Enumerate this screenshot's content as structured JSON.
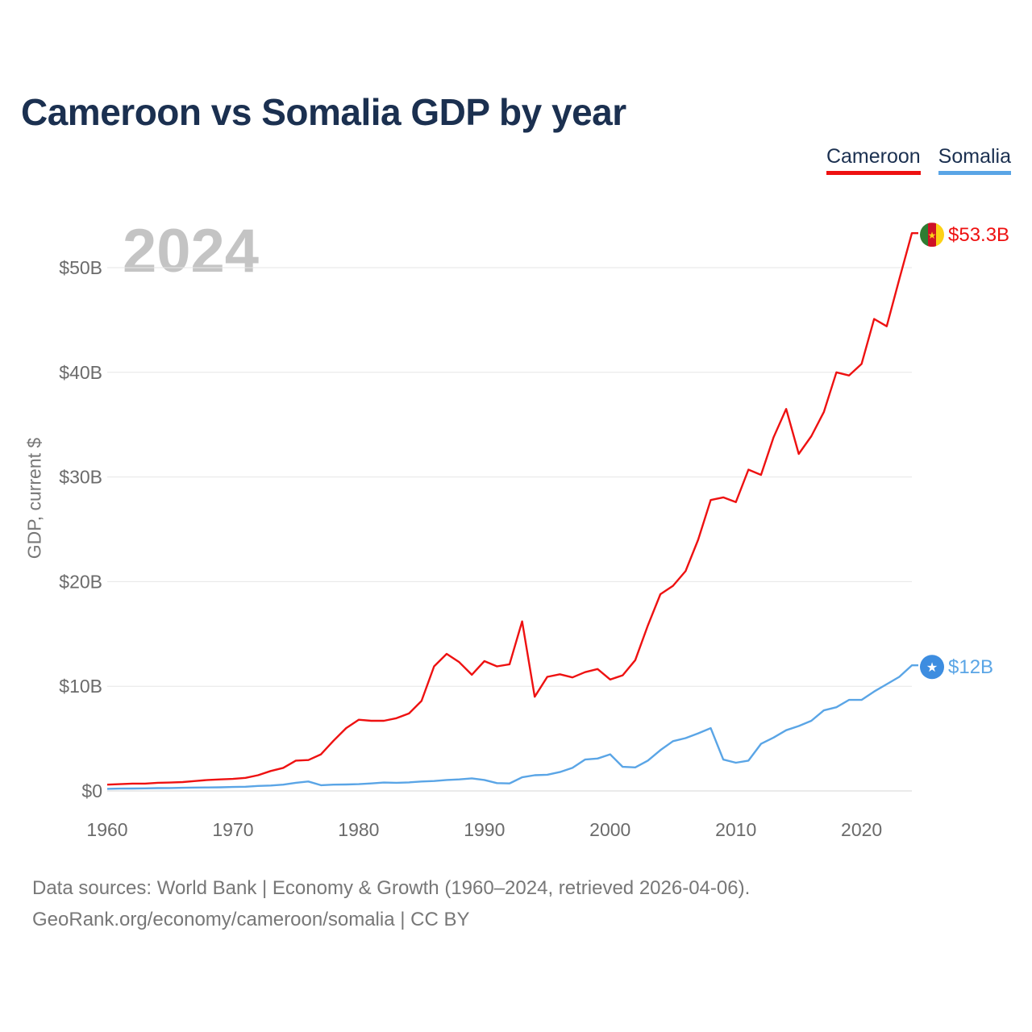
{
  "chart_data": {
    "type": "line",
    "title": "Cameroon vs Somalia GDP by year",
    "year_label": "2024",
    "ylabel": "GDP, current $",
    "xlabel": "",
    "xlim": [
      1960,
      2024
    ],
    "ylim": [
      0,
      55
    ],
    "y_unit": "billion current US$",
    "x_ticks": [
      1960,
      1970,
      1980,
      1990,
      2000,
      2010,
      2020
    ],
    "y_ticks": [
      0,
      10,
      20,
      30,
      40,
      50
    ],
    "y_tick_labels": [
      "$0",
      "$10B",
      "$20B",
      "$30B",
      "$40B",
      "$50B"
    ],
    "grid": true,
    "legend_position": "top-right",
    "x": [
      1960,
      1961,
      1962,
      1963,
      1964,
      1965,
      1966,
      1967,
      1968,
      1969,
      1970,
      1971,
      1972,
      1973,
      1974,
      1975,
      1976,
      1977,
      1978,
      1979,
      1980,
      1981,
      1982,
      1983,
      1984,
      1985,
      1986,
      1987,
      1988,
      1989,
      1990,
      1991,
      1992,
      1993,
      1994,
      1995,
      1996,
      1997,
      1998,
      1999,
      2000,
      2001,
      2002,
      2003,
      2004,
      2005,
      2006,
      2007,
      2008,
      2009,
      2010,
      2011,
      2012,
      2013,
      2014,
      2015,
      2016,
      2017,
      2018,
      2019,
      2020,
      2021,
      2022,
      2023,
      2024
    ],
    "series": [
      {
        "name": "Cameroon",
        "color": "#ee1111",
        "end_label": "$53.3B",
        "flag": "cameroon-flag",
        "values": [
          0.6,
          0.65,
          0.7,
          0.7,
          0.78,
          0.8,
          0.85,
          0.95,
          1.05,
          1.1,
          1.15,
          1.25,
          1.5,
          1.9,
          2.2,
          2.9,
          2.95,
          3.5,
          4.8,
          6.0,
          6.8,
          6.7,
          6.7,
          6.95,
          7.4,
          8.6,
          11.9,
          13.1,
          12.3,
          11.1,
          12.4,
          11.9,
          12.1,
          16.2,
          9.0,
          10.9,
          11.15,
          10.85,
          11.35,
          11.65,
          10.65,
          11.05,
          12.5,
          15.8,
          18.8,
          19.6,
          21.0,
          24.0,
          27.8,
          28.05,
          27.6,
          30.7,
          30.2,
          33.8,
          36.5,
          32.2,
          33.9,
          36.2,
          40.0,
          39.7,
          40.8,
          45.1,
          44.4,
          48.9,
          53.3
        ]
      },
      {
        "name": "Somalia",
        "color": "#5aa5e6",
        "end_label": "$12B",
        "flag": "somalia-flag",
        "values": [
          0.2,
          0.22,
          0.23,
          0.25,
          0.27,
          0.28,
          0.3,
          0.32,
          0.33,
          0.35,
          0.38,
          0.4,
          0.48,
          0.52,
          0.6,
          0.78,
          0.9,
          0.55,
          0.6,
          0.62,
          0.65,
          0.72,
          0.8,
          0.78,
          0.82,
          0.9,
          0.95,
          1.05,
          1.1,
          1.2,
          1.05,
          0.75,
          0.72,
          1.3,
          1.5,
          1.55,
          1.8,
          2.2,
          3.0,
          3.1,
          3.5,
          2.3,
          2.25,
          2.9,
          3.9,
          4.75,
          5.05,
          5.5,
          6.0,
          3.0,
          2.7,
          2.9,
          4.5,
          5.1,
          5.8,
          6.2,
          6.7,
          7.7,
          8.0,
          8.7,
          8.7,
          9.5,
          10.2,
          10.9,
          12.0
        ]
      }
    ]
  },
  "source": {
    "line1": "Data sources: World Bank | Economy & Growth (1960–2024, retrieved 2026-04-06).",
    "line2": "GeoRank.org/economy/cameroon/somalia | CC BY"
  }
}
